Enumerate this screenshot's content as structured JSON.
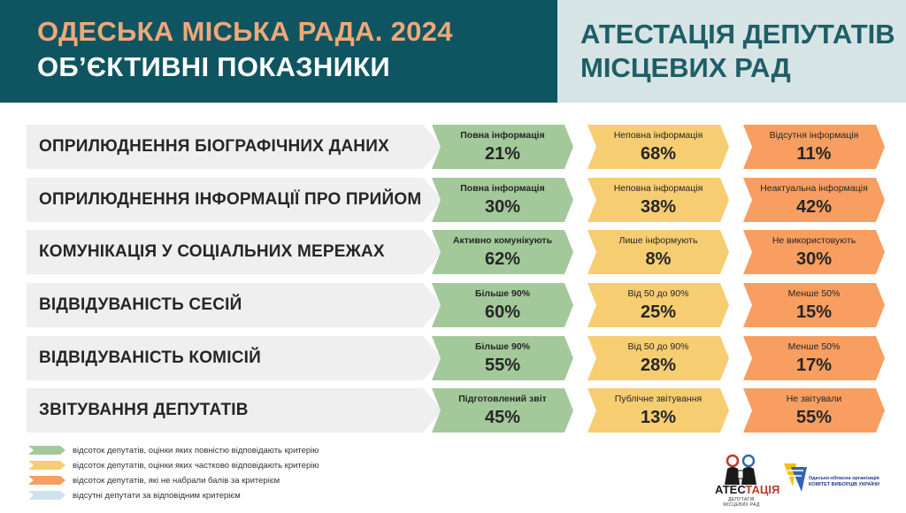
{
  "header": {
    "title": "ОДЕСЬКА МІСЬКА РАДА. 2024",
    "subtitle": "ОБ’ЄКТИВНІ ПОКАЗНИКИ",
    "right_line1": "АТЕСТАЦІЯ ДЕПУТАТІВ",
    "right_line2": "МІСЦЕВИХ РАД"
  },
  "rows": [
    {
      "label": "ОПРИЛЮДНЕННЯ БІОГРАФІЧНИХ ДАНИХ",
      "green": {
        "label": "Повна інформація",
        "value": "21%"
      },
      "yellow": {
        "label": "Неповна інформація",
        "value": "68%"
      },
      "orange": {
        "label": "Відсутня інформація",
        "value": "11%"
      }
    },
    {
      "label": "ОПРИЛЮДНЕННЯ ІНФОРМАЦІЇ ПРО ПРИЙОМ",
      "green": {
        "label": "Повна інформація",
        "value": "30%"
      },
      "yellow": {
        "label": "Неповна інформація",
        "value": "38%"
      },
      "orange": {
        "label": "Неактуальна інформація",
        "value": "42%"
      }
    },
    {
      "label": "КОМУНІКАЦІЯ У СОЦІАЛЬНИХ МЕРЕЖАХ",
      "green": {
        "label": "Активно комунікують",
        "value": "62%"
      },
      "yellow": {
        "label": "Лише інформують",
        "value": "8%"
      },
      "orange": {
        "label": "Не використовують",
        "value": "30%"
      }
    },
    {
      "label": "ВІДВІДУВАНІСТЬ СЕСІЙ",
      "green": {
        "label": "Більше 90%",
        "value": "60%"
      },
      "yellow": {
        "label": "Від 50 до 90%",
        "value": "25%"
      },
      "orange": {
        "label": "Менше 50%",
        "value": "15%"
      }
    },
    {
      "label": "ВІДВІДУВАНІСТЬ КОМІСІЙ",
      "green": {
        "label": "Більше 90%",
        "value": "55%"
      },
      "yellow": {
        "label": "Від 50 до 90%",
        "value": "28%"
      },
      "orange": {
        "label": "Менше 50%",
        "value": "17%"
      }
    },
    {
      "label": "ЗВІТУВАННЯ ДЕПУТАТІВ",
      "green": {
        "label": "Підготовлений звіт",
        "value": "45%"
      },
      "yellow": {
        "label": "Публічне звітування",
        "value": "13%"
      },
      "orange": {
        "label": "Не звітували",
        "value": "55%"
      }
    }
  ],
  "legend": [
    {
      "color": "#a3c99b",
      "text": "відсоток депутатів, оцінки яких повністю відповідають критерію"
    },
    {
      "color": "#f7cd72",
      "text": "відсоток депутатів, оцінки яких частково відповідають критерію"
    },
    {
      "color": "#f79e60",
      "text": "відсоток депутатів, які не набрали балів за критерієм"
    },
    {
      "color": "#cfe2ee",
      "text": "відсутні депутати за відповідним критерієм"
    }
  ],
  "logos": {
    "atestatsiia_word_a": "АТЕС",
    "atestatsiia_word_b": "ТАЦІЯ",
    "atestatsiia_sub": "ДЕПУТАТІВ МІСЦЕВИХ РАД",
    "kvu_line1": "Одесько-обласна організація",
    "kvu_line2": "КОМІТЕТ ВИБОРЦІВ УКРАЇНИ"
  },
  "colors": {
    "header_dark": "#0f5561",
    "header_light": "#d6e4e6",
    "title_accent": "#f0a878",
    "green": "#a3c99b",
    "yellow": "#f7cd72",
    "orange": "#f79e60"
  }
}
